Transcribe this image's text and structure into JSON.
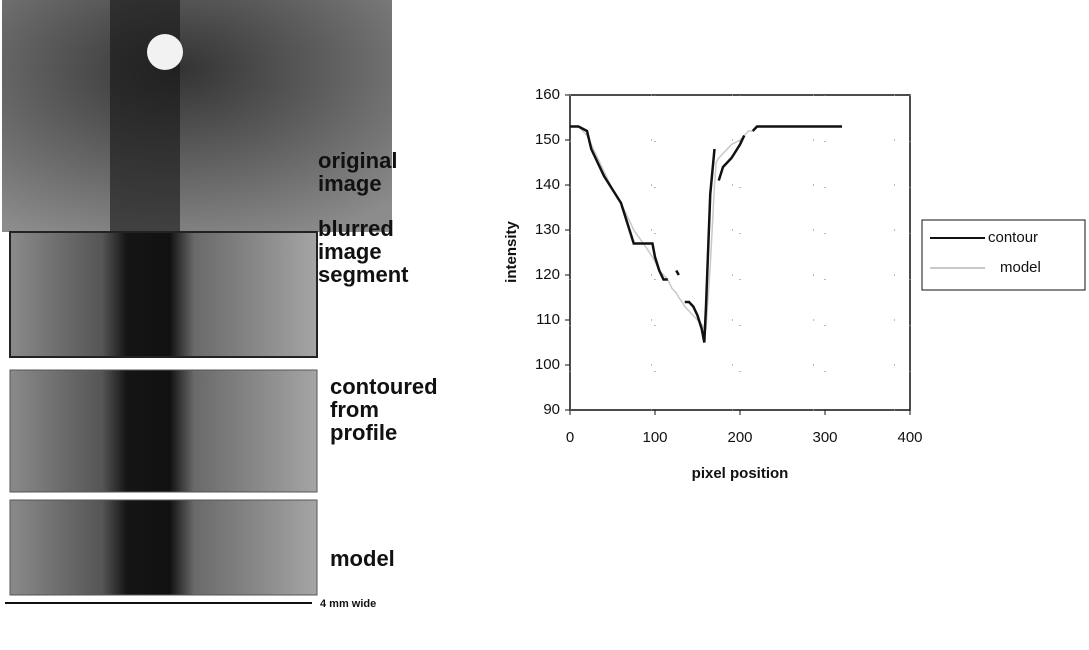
{
  "panels": [
    {
      "lines": [
        "original",
        "image"
      ]
    },
    {
      "lines": [
        "blurred",
        "image",
        "segment"
      ]
    },
    {
      "lines": [
        "contoured",
        "from",
        "profile"
      ]
    },
    {
      "lines": [
        "model"
      ]
    }
  ],
  "scale_bar": "4 mm wide",
  "chart_data": {
    "type": "line",
    "xlabel": "pixel position",
    "ylabel": "intensity",
    "x": [
      0,
      10,
      20,
      25,
      30,
      40,
      50,
      60,
      65,
      70,
      75,
      90,
      97,
      100,
      105,
      110,
      115,
      120,
      125,
      128,
      132,
      135,
      140,
      145,
      150,
      155,
      158,
      160,
      165,
      170,
      172,
      175,
      180,
      190,
      200,
      205,
      210,
      215,
      220,
      240,
      260,
      280,
      300,
      320
    ],
    "series": [
      {
        "name": "contour",
        "color": "#111111",
        "values": [
          153,
          153,
          152,
          148,
          146,
          142,
          139,
          136,
          133,
          130,
          127,
          127,
          127,
          124,
          121,
          119,
          119,
          null,
          121,
          120,
          null,
          114,
          114,
          113,
          111,
          108,
          105,
          113,
          138,
          148,
          null,
          141,
          144,
          146,
          149,
          151,
          null,
          152,
          153,
          153,
          153,
          153,
          153,
          153
        ]
      },
      {
        "name": "model",
        "color": "#c8c8c8",
        "values": [
          153,
          153,
          151,
          149,
          147,
          143,
          139,
          136,
          134,
          132,
          130,
          126,
          124,
          123,
          121,
          120,
          119,
          117,
          116,
          115,
          114,
          113,
          112,
          111,
          110,
          109,
          108,
          108,
          122,
          140,
          145,
          146,
          147,
          149,
          150,
          151,
          152,
          152,
          153,
          153,
          153,
          153,
          153,
          153
        ]
      }
    ],
    "xlim": [
      0,
      400
    ],
    "xticks": [
      0,
      100,
      200,
      300,
      400
    ],
    "ylim": [
      90,
      160
    ],
    "yticks": [
      90,
      100,
      110,
      120,
      130,
      140,
      150,
      160
    ],
    "grid": true,
    "legend": "right"
  }
}
